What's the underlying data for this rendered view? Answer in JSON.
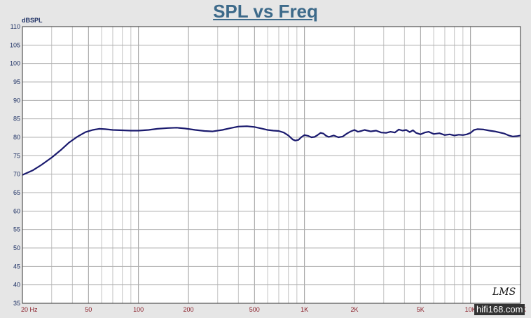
{
  "chart_data": {
    "type": "line",
    "title": "SPL vs Freq",
    "ylabel": "dBSPL",
    "xlabel": "",
    "x_scale": "log",
    "xlim": [
      20,
      20000
    ],
    "ylim": [
      35,
      110
    ],
    "y_ticks": [
      "110",
      "105",
      "100",
      "95",
      "90",
      "85",
      "80",
      "75",
      "70",
      "65",
      "60",
      "55",
      "50",
      "45",
      "40",
      "35"
    ],
    "x_tick_labels": [
      {
        "value": 20,
        "label": "20  Hz"
      },
      {
        "value": 50,
        "label": "50"
      },
      {
        "value": 100,
        "label": "100"
      },
      {
        "value": 200,
        "label": "200"
      },
      {
        "value": 500,
        "label": "500"
      },
      {
        "value": 1000,
        "label": "1K"
      },
      {
        "value": 2000,
        "label": "2K"
      },
      {
        "value": 5000,
        "label": "5K"
      },
      {
        "value": 10000,
        "label": "10K"
      },
      {
        "value": 20000,
        "label": "20K"
      }
    ],
    "grid": true,
    "series": [
      {
        "color": "#1a1a6e",
        "points": [
          [
            20,
            69.8
          ],
          [
            23,
            71
          ],
          [
            26,
            72.5
          ],
          [
            30,
            74.5
          ],
          [
            34,
            76.5
          ],
          [
            38,
            78.5
          ],
          [
            43,
            80.2
          ],
          [
            48,
            81.4
          ],
          [
            53,
            82
          ],
          [
            58,
            82.3
          ],
          [
            63,
            82.2
          ],
          [
            70,
            82
          ],
          [
            80,
            81.9
          ],
          [
            90,
            81.8
          ],
          [
            100,
            81.8
          ],
          [
            115,
            82
          ],
          [
            130,
            82.3
          ],
          [
            150,
            82.5
          ],
          [
            170,
            82.6
          ],
          [
            190,
            82.4
          ],
          [
            220,
            82
          ],
          [
            250,
            81.7
          ],
          [
            280,
            81.6
          ],
          [
            320,
            82
          ],
          [
            360,
            82.5
          ],
          [
            400,
            82.9
          ],
          [
            450,
            83
          ],
          [
            500,
            82.8
          ],
          [
            550,
            82.4
          ],
          [
            600,
            82
          ],
          [
            650,
            81.8
          ],
          [
            700,
            81.7
          ],
          [
            750,
            81.3
          ],
          [
            800,
            80.5
          ],
          [
            850,
            79.4
          ],
          [
            880,
            79.1
          ],
          [
            920,
            79.3
          ],
          [
            960,
            80.1
          ],
          [
            1000,
            80.6
          ],
          [
            1050,
            80.4
          ],
          [
            1100,
            80
          ],
          [
            1150,
            80.1
          ],
          [
            1200,
            80.6
          ],
          [
            1250,
            81.2
          ],
          [
            1300,
            81
          ],
          [
            1350,
            80.4
          ],
          [
            1400,
            80.1
          ],
          [
            1500,
            80.5
          ],
          [
            1600,
            80
          ],
          [
            1700,
            80.2
          ],
          [
            1800,
            81
          ],
          [
            1900,
            81.6
          ],
          [
            2000,
            82
          ],
          [
            2100,
            81.5
          ],
          [
            2200,
            81.7
          ],
          [
            2300,
            82
          ],
          [
            2500,
            81.6
          ],
          [
            2700,
            81.8
          ],
          [
            2900,
            81.3
          ],
          [
            3100,
            81.2
          ],
          [
            3300,
            81.5
          ],
          [
            3500,
            81.3
          ],
          [
            3700,
            82.1
          ],
          [
            3900,
            81.8
          ],
          [
            4100,
            82
          ],
          [
            4300,
            81.4
          ],
          [
            4500,
            81.9
          ],
          [
            4700,
            81.2
          ],
          [
            5000,
            80.8
          ],
          [
            5300,
            81.3
          ],
          [
            5600,
            81.5
          ],
          [
            6000,
            80.9
          ],
          [
            6500,
            81.1
          ],
          [
            7000,
            80.6
          ],
          [
            7500,
            80.8
          ],
          [
            8000,
            80.5
          ],
          [
            8500,
            80.7
          ],
          [
            9000,
            80.6
          ],
          [
            9500,
            80.8
          ],
          [
            10000,
            81.2
          ],
          [
            10500,
            82
          ],
          [
            11000,
            82.2
          ],
          [
            12000,
            82.1
          ],
          [
            13000,
            81.8
          ],
          [
            14000,
            81.6
          ],
          [
            15000,
            81.3
          ],
          [
            16000,
            81
          ],
          [
            17000,
            80.5
          ],
          [
            18000,
            80.2
          ],
          [
            19000,
            80.3
          ],
          [
            20000,
            80.5
          ]
        ]
      }
    ]
  },
  "branding": {
    "logo": "LMS",
    "watermark": "hifi168.com"
  }
}
